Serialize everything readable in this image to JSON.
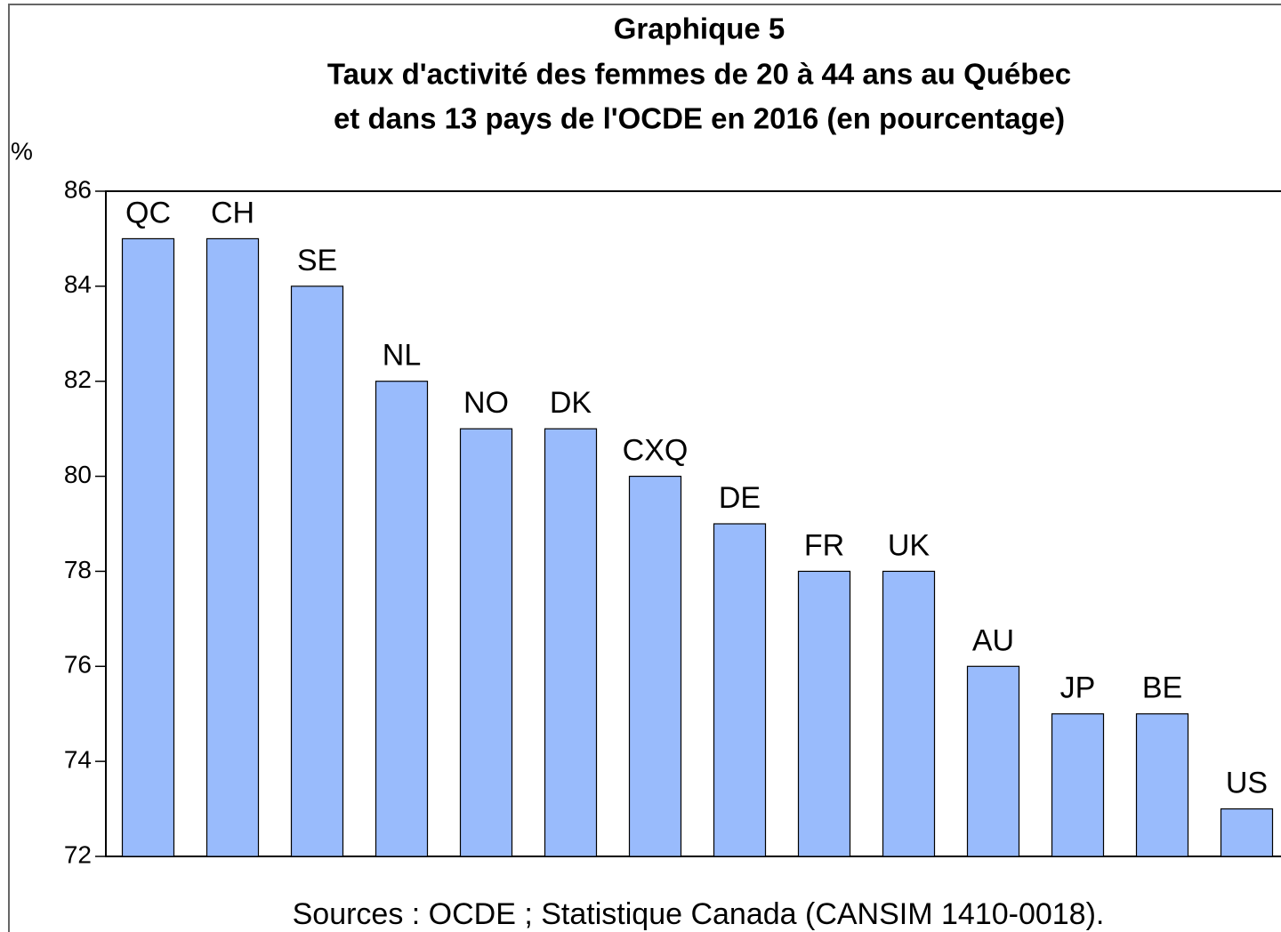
{
  "chart_data": {
    "type": "bar",
    "title": [
      "Graphique 5",
      "Taux d'activité des femmes de 20 à 44 ans au Québec",
      "et dans 13 pays de l'OCDE en 2016 (en pourcentage)"
    ],
    "ylabel": "%",
    "source": "Sources : OCDE ; Statistique Canada (CANSIM 1410-0018).",
    "categories": [
      "QC",
      "CH",
      "SE",
      "NL",
      "NO",
      "DK",
      "CXQ",
      "DE",
      "FR",
      "UK",
      "AU",
      "JP",
      "BE",
      "US"
    ],
    "values": [
      85,
      85,
      84,
      82,
      81,
      81,
      80,
      79,
      78,
      78,
      76,
      75,
      75,
      73
    ],
    "color": "#99bbfc",
    "ylim": [
      72,
      86
    ],
    "yticks": [
      72,
      74,
      76,
      78,
      80,
      82,
      84,
      86
    ],
    "grid": false
  }
}
